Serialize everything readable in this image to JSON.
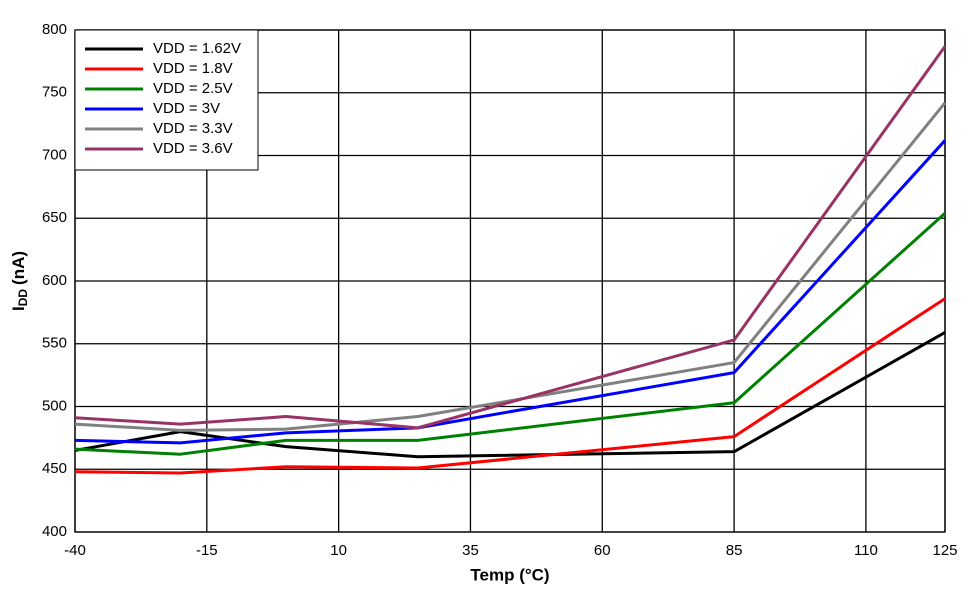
{
  "chart_data": {
    "type": "line",
    "xlabel": "Temp (°C)",
    "ylabel": {
      "main": "I",
      "sub": "DD",
      "unit": "(nA)"
    },
    "x": [
      -40,
      -20,
      0,
      25,
      85,
      125
    ],
    "series": [
      {
        "name": "VDD = 1.62V",
        "color": "#000000",
        "values": [
          465,
          480,
          468,
          460,
          464,
          559
        ]
      },
      {
        "name": "VDD = 1.8V",
        "color": "#ff0000",
        "values": [
          448,
          447,
          452,
          451,
          476,
          586
        ]
      },
      {
        "name": "VDD = 2.5V",
        "color": "#008000",
        "values": [
          466,
          462,
          473,
          473,
          503,
          654
        ]
      },
      {
        "name": "VDD = 3V",
        "color": "#0000ff",
        "values": [
          473,
          471,
          479,
          483,
          527,
          712
        ]
      },
      {
        "name": "VDD = 3.3V",
        "color": "#808080",
        "values": [
          486,
          481,
          482,
          492,
          535,
          742
        ]
      },
      {
        "name": "VDD = 3.6V",
        "color": "#993366",
        "values": [
          491,
          486,
          492,
          483,
          553,
          787
        ]
      }
    ],
    "xlim": [
      -40,
      125
    ],
    "xticks": [
      -40,
      -15,
      10,
      35,
      60,
      85,
      110,
      125
    ],
    "ylim": [
      400,
      800
    ],
    "yticks": [
      400,
      450,
      500,
      550,
      600,
      650,
      700,
      750,
      800
    ],
    "grid": true,
    "legend": "upper-left"
  }
}
